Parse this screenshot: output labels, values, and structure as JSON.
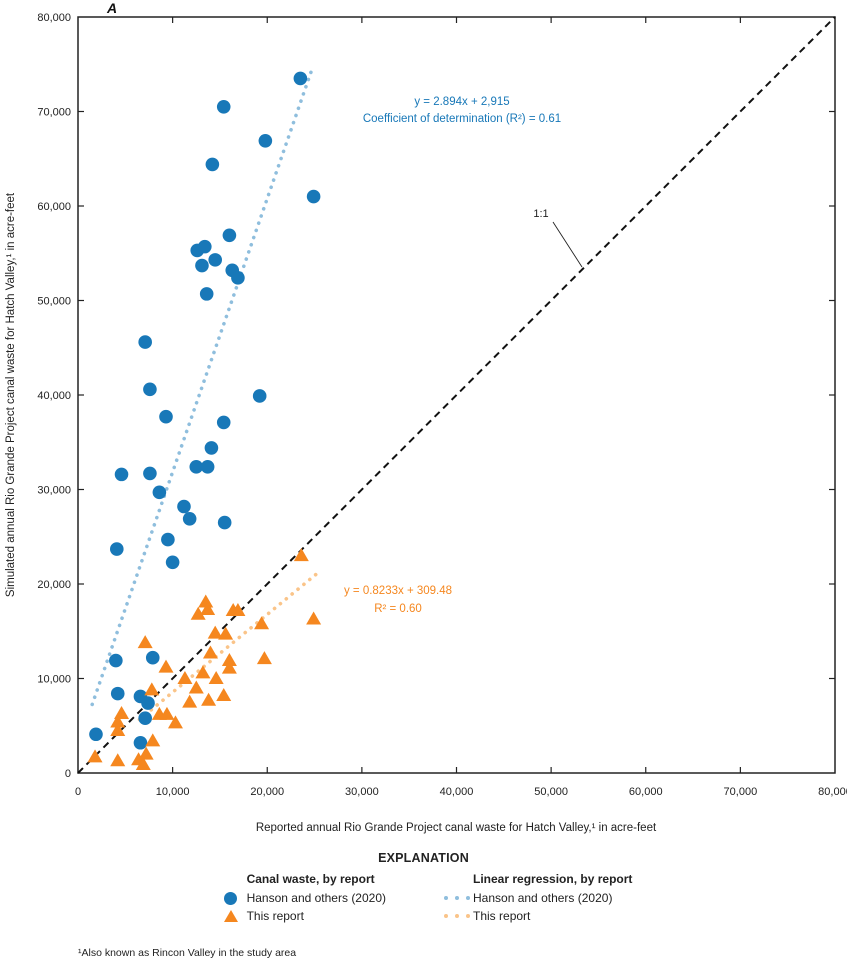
{
  "figure": {
    "panel_label": "A",
    "footnote": "¹Also known as Rincon Valley in the study area"
  },
  "colors": {
    "hanson_marker": "#1878b8",
    "this_report_marker": "#f5871f",
    "hanson_regression": "#8fbedd",
    "this_report_regression": "#fac489",
    "axis": "#222222"
  },
  "chart_data": {
    "type": "scatter",
    "title": "",
    "xlabel": "Reported annual Rio Grande Project canal waste for Hatch Valley,¹ in acre-feet",
    "ylabel": "Simulated annual Rio Grande Project canal waste for Hatch Valley,¹ in acre-feet",
    "xlim": [
      0,
      80000
    ],
    "ylim": [
      0,
      80000
    ],
    "ticks": [
      0,
      10000,
      20000,
      30000,
      40000,
      50000,
      60000,
      70000,
      80000
    ],
    "tick_labels": [
      "0",
      "10,000",
      "20,000",
      "30,000",
      "40,000",
      "50,000",
      "60,000",
      "70,000",
      "80,000"
    ],
    "grid": false,
    "series": [
      {
        "name": "Hanson and others (2020)",
        "marker": "circle",
        "color": "#1878b8",
        "points": [
          [
            23500,
            73500
          ],
          [
            15400,
            70500
          ],
          [
            19800,
            66900
          ],
          [
            14200,
            64400
          ],
          [
            24900,
            61000
          ],
          [
            16000,
            56900
          ],
          [
            12600,
            55300
          ],
          [
            13400,
            55700
          ],
          [
            14500,
            54300
          ],
          [
            13100,
            53700
          ],
          [
            16300,
            53200
          ],
          [
            16900,
            52400
          ],
          [
            13600,
            50700
          ],
          [
            7100,
            45600
          ],
          [
            7600,
            40600
          ],
          [
            19200,
            39900
          ],
          [
            9300,
            37700
          ],
          [
            15400,
            37100
          ],
          [
            14100,
            34400
          ],
          [
            12500,
            32400
          ],
          [
            13700,
            32400
          ],
          [
            4600,
            31600
          ],
          [
            7600,
            31700
          ],
          [
            8600,
            29700
          ],
          [
            11200,
            28200
          ],
          [
            11800,
            26900
          ],
          [
            15500,
            26500
          ],
          [
            9500,
            24700
          ],
          [
            4100,
            23700
          ],
          [
            10000,
            22300
          ],
          [
            4000,
            11900
          ],
          [
            7900,
            12200
          ],
          [
            4200,
            8400
          ],
          [
            6600,
            8100
          ],
          [
            7400,
            7400
          ],
          [
            7100,
            5800
          ],
          [
            1900,
            4100
          ],
          [
            6600,
            3200
          ]
        ]
      },
      {
        "name": "This report",
        "marker": "triangle",
        "color": "#f5871f",
        "points": [
          [
            23600,
            23000
          ],
          [
            13500,
            18100
          ],
          [
            13700,
            17300
          ],
          [
            12700,
            16800
          ],
          [
            16400,
            17200
          ],
          [
            16900,
            17200
          ],
          [
            19400,
            15800
          ],
          [
            24900,
            16300
          ],
          [
            14500,
            14800
          ],
          [
            15600,
            14700
          ],
          [
            7100,
            13800
          ],
          [
            14000,
            12700
          ],
          [
            16000,
            11900
          ],
          [
            16000,
            11100
          ],
          [
            9300,
            11200
          ],
          [
            19700,
            12100
          ],
          [
            13200,
            10600
          ],
          [
            14600,
            10000
          ],
          [
            11300,
            10000
          ],
          [
            12500,
            9000
          ],
          [
            15400,
            8200
          ],
          [
            13800,
            7700
          ],
          [
            11800,
            7500
          ],
          [
            7800,
            8800
          ],
          [
            4600,
            6300
          ],
          [
            4200,
            5400
          ],
          [
            8600,
            6200
          ],
          [
            9400,
            6200
          ],
          [
            10300,
            5300
          ],
          [
            4200,
            4500
          ],
          [
            7900,
            3400
          ],
          [
            7200,
            2000
          ],
          [
            1800,
            1700
          ],
          [
            4200,
            1300
          ],
          [
            6400,
            1400
          ],
          [
            6900,
            900
          ]
        ]
      }
    ],
    "regressions": [
      {
        "name": "Hanson and others (2020)",
        "color": "#8fbedd",
        "slope": 2.894,
        "intercept": 2915,
        "x_range": [
          1500,
          24800
        ],
        "equation_lines": [
          "y = 2.894x + 2,915",
          "Coefficient of determination (R²) = 0.61"
        ],
        "r_squared": 0.61
      },
      {
        "name": "This report",
        "color": "#fac489",
        "slope": 0.8233,
        "intercept": 309.48,
        "x_range": [
          6500,
          25500
        ],
        "equation_lines": [
          "y = 0.8233x + 309.48",
          "R² = 0.60"
        ],
        "r_squared": 0.6
      }
    ],
    "one_to_one": {
      "label": "1:1"
    },
    "legend_position": "bottom"
  },
  "legend": {
    "title": "EXPLANATION",
    "groups": [
      {
        "heading": "Canal waste, by report",
        "items": [
          {
            "label": "Hanson and others (2020)",
            "marker": "circle",
            "color": "#1878b8"
          },
          {
            "label": "This report",
            "marker": "triangle",
            "color": "#f5871f"
          }
        ]
      },
      {
        "heading": "Linear regression, by report",
        "items": [
          {
            "label": "Hanson and others (2020)",
            "marker": "dotted",
            "color": "#8fbedd"
          },
          {
            "label": "This report",
            "marker": "dotted",
            "color": "#fac489"
          }
        ]
      }
    ]
  }
}
